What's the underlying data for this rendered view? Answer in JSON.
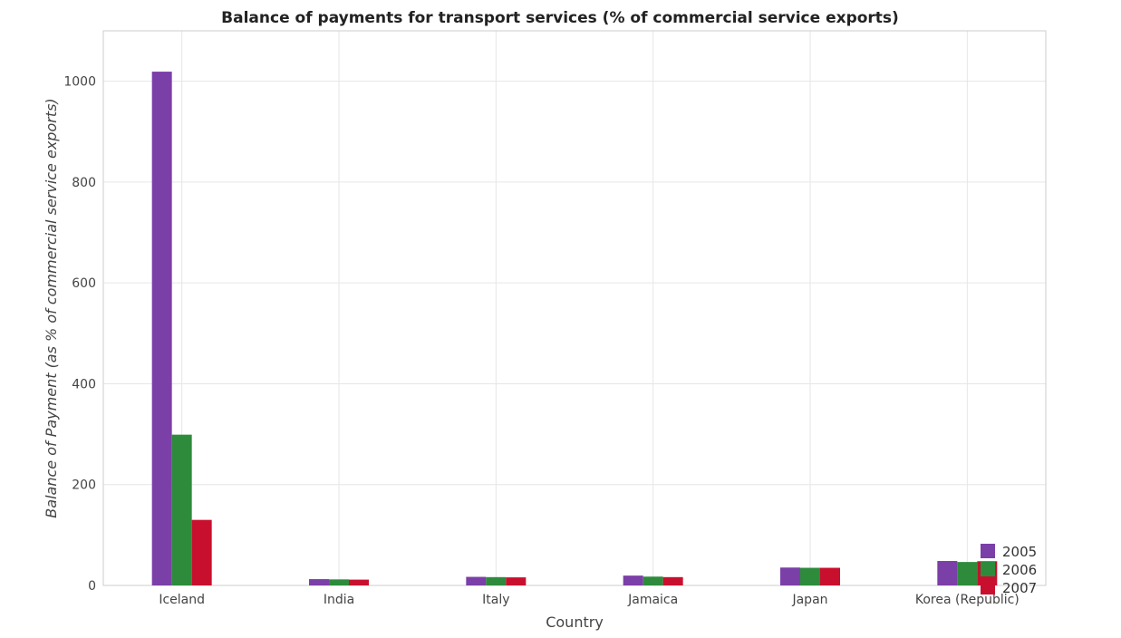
{
  "chart_data": {
    "type": "bar",
    "title": "Balance of payments for transport services (% of commercial service exports)",
    "xlabel": "Country",
    "ylabel": "Balance of Payment (as % of commercial service exports)",
    "categories": [
      "Iceland",
      "India",
      "Italy",
      "Jamaica",
      "Japan",
      "Korea (Republic)"
    ],
    "series": [
      {
        "name": "2005",
        "color": "#7b3fa8",
        "values": [
          1019.0,
          12.5,
          17.0,
          19.5,
          35.5,
          48.5
        ]
      },
      {
        "name": "2006",
        "color": "#2e8b3c",
        "values": [
          299.0,
          12.0,
          16.5,
          17.5,
          35.0,
          46.5
        ]
      },
      {
        "name": "2007",
        "color": "#c8102e",
        "values": [
          130.0,
          11.5,
          16.0,
          16.5,
          35.0,
          48.0
        ]
      }
    ],
    "ylim": [
      0,
      1100
    ],
    "yticks": [
      0,
      200,
      400,
      600,
      800,
      1000
    ],
    "grid": true,
    "legend_position": "bottom-right"
  }
}
